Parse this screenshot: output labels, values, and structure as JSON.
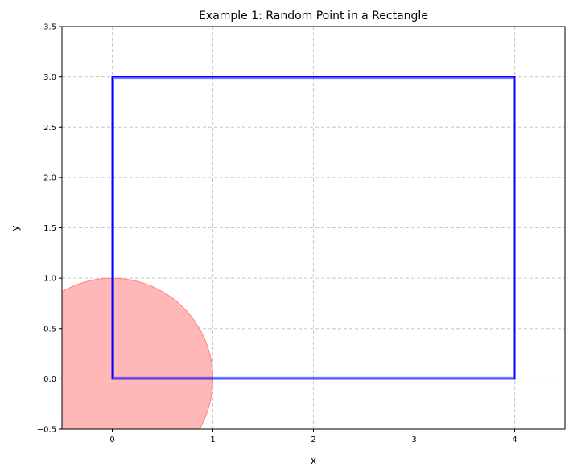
{
  "chart_data": {
    "type": "scatter",
    "title": "Example 1: Random Point in a Rectangle",
    "xlabel": "x",
    "ylabel": "y",
    "xlim": [
      -0.5,
      4.5
    ],
    "ylim": [
      -0.5,
      3.5
    ],
    "x_ticks": [
      0,
      1,
      2,
      3,
      4
    ],
    "x_tick_labels": [
      "0",
      "1",
      "2",
      "3",
      "4"
    ],
    "y_ticks": [
      -0.5,
      0.0,
      0.5,
      1.0,
      1.5,
      2.0,
      2.5,
      3.0,
      3.5
    ],
    "y_tick_labels": [
      "−0.5",
      "0.0",
      "0.5",
      "1.0",
      "1.5",
      "2.0",
      "2.5",
      "3.0",
      "3.5"
    ],
    "grid": true,
    "grid_style": "dashed",
    "rectangle": {
      "x0": 0,
      "y0": 0,
      "x1": 4,
      "y1": 3,
      "color": "#0000ff"
    },
    "circle": {
      "cx": 0,
      "cy": 0,
      "r": 1,
      "color": "#ff8080"
    },
    "colors": {
      "rectangle": "#0000ff",
      "circle_fill": "#ffb3b3",
      "circle_edge": "#ff8080",
      "grid": "#c8c8c8"
    }
  }
}
